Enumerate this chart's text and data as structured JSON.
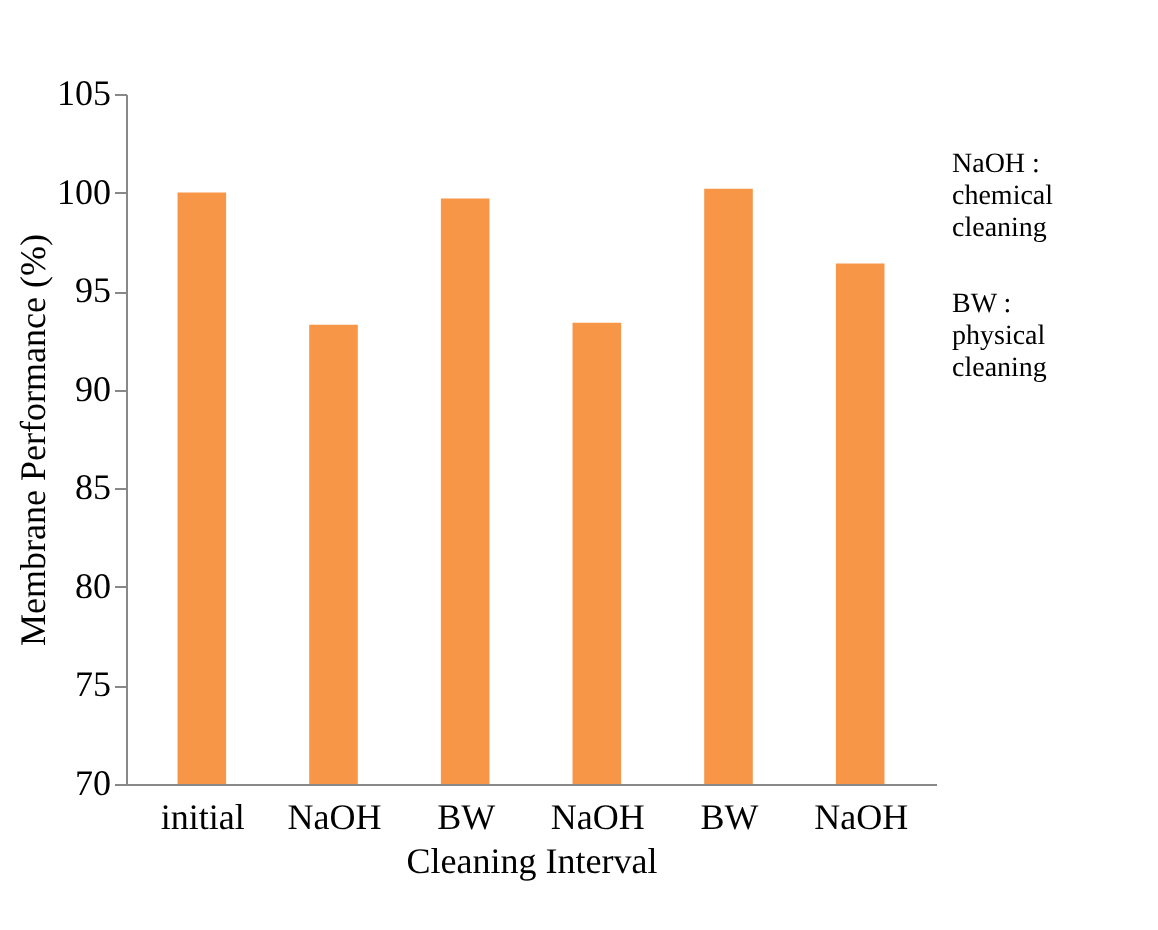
{
  "chart_data": {
    "type": "bar",
    "categories": [
      "initial",
      "NaOH",
      "BW",
      "NaOH",
      "BW",
      "NaOH"
    ],
    "values": [
      100,
      93.3,
      99.7,
      93.4,
      100.2,
      96.4
    ],
    "color": "#f79646",
    "xlabel": "Cleaning Interval",
    "ylabel": "Membrane Performance (%)",
    "ylim": [
      70,
      105
    ],
    "yticks": [
      70,
      75,
      80,
      85,
      90,
      95,
      100,
      105
    ],
    "grid": false,
    "annotations": [
      "NaOH :\nchemical\ncleaning",
      "BW :\nphysical\ncleaning"
    ]
  }
}
